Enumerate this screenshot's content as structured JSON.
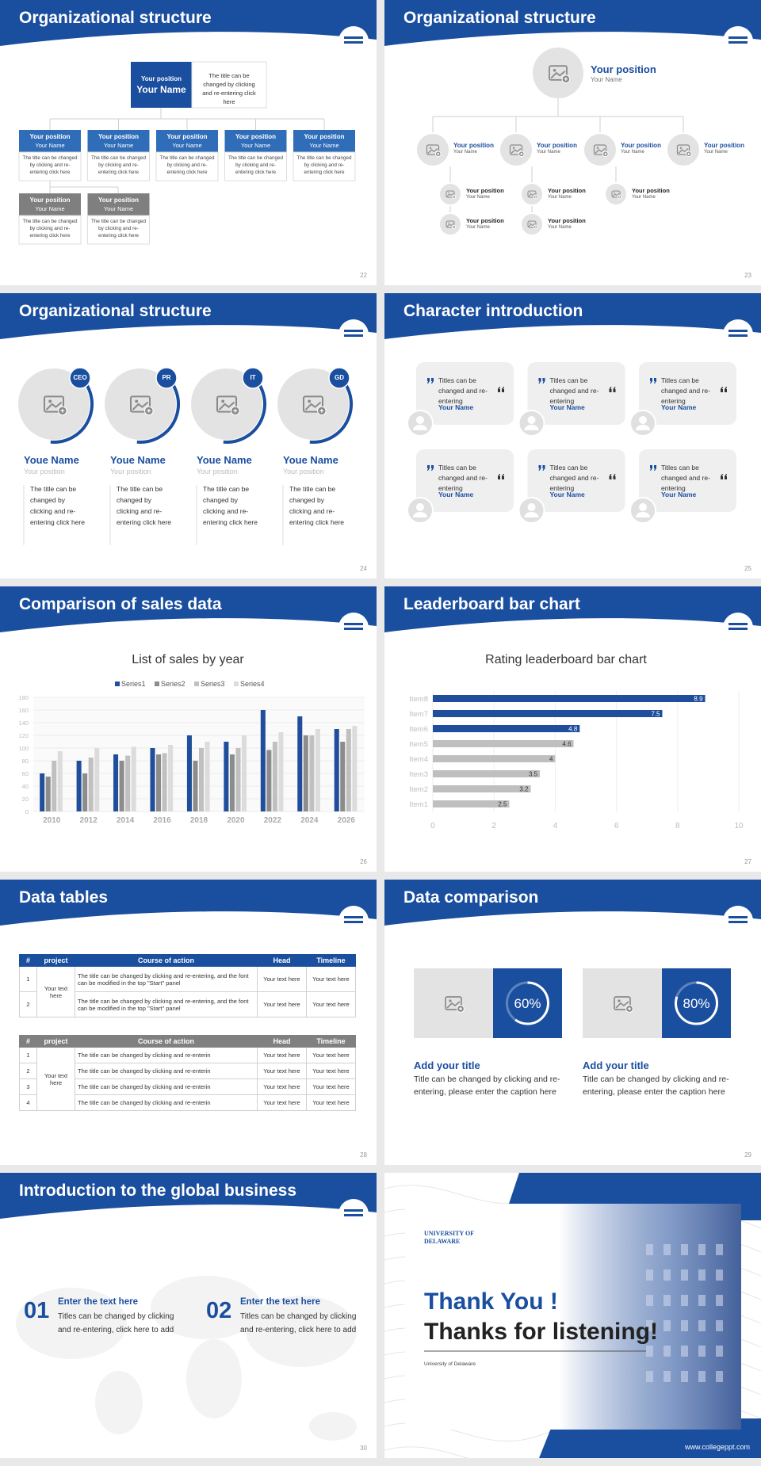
{
  "slides": [
    {
      "title": "Organizational structure",
      "page": "22",
      "top": {
        "position": "Your position",
        "name": "Your Name",
        "desc": "The title can be changed by clicking and re-entering click here"
      },
      "boxes": [
        {
          "position": "Your position",
          "name": "Your Name",
          "desc": "The title can be changed by clicking and re-entering click here"
        },
        {
          "position": "Your position",
          "name": "Your Name",
          "desc": "The title can be changed by clicking and re-entering click here"
        },
        {
          "position": "Your position",
          "name": "Your Name",
          "desc": "The title can be changed by clicking and re-entering click here"
        },
        {
          "position": "Your position",
          "name": "Your Name",
          "desc": "The title can be changed by clicking and re-entering click here"
        },
        {
          "position": "Your position",
          "name": "Your Name",
          "desc": "The title can be changed by clicking and re-entering click here"
        }
      ],
      "gray_boxes": [
        {
          "position": "Your position",
          "name": "Your Name",
          "desc": "The title can be changed by clicking and re-entering click here"
        },
        {
          "position": "Your position",
          "name": "Your Name",
          "desc": "The title can be changed by clicking and re-entering click here"
        }
      ]
    },
    {
      "title": "Organizational structure",
      "page": "23",
      "top": {
        "position": "Your position",
        "name": "Your Name"
      },
      "mid": [
        {
          "position": "Your position",
          "name": "Your Name"
        },
        {
          "position": "Your position",
          "name": "Your Name"
        },
        {
          "position": "Your position",
          "name": "Your Name"
        },
        {
          "position": "Your position",
          "name": "Your Name"
        }
      ],
      "small": [
        {
          "position": "Your position",
          "name": "Your Name"
        },
        {
          "position": "Your position",
          "name": "Your Name"
        },
        {
          "position": "Your position",
          "name": "Your Name"
        },
        {
          "position": "Your position",
          "name": "Your Name"
        },
        {
          "position": "Your position",
          "name": "Your Name"
        }
      ]
    },
    {
      "title": "Organizational structure",
      "page": "24",
      "cards": [
        {
          "badge": "CEO",
          "name": "Youe Name",
          "position": "Your position",
          "desc": "The title can be changed by clicking and re-entering click here"
        },
        {
          "badge": "PR",
          "name": "Youe Name",
          "position": "Your position",
          "desc": "The title can be changed by clicking and re-entering click here"
        },
        {
          "badge": "IT",
          "name": "Youe Name",
          "position": "Your position",
          "desc": "The title can be changed by clicking and re-entering click here"
        },
        {
          "badge": "GD",
          "name": "Youe Name",
          "position": "Your position",
          "desc": "The title can be changed by clicking and re-entering click here"
        }
      ]
    },
    {
      "title": "Character introduction",
      "page": "25",
      "cards": [
        {
          "quote": "Titles can be changed and re-entering",
          "name": "Your Name"
        },
        {
          "quote": "Titles can be changed and re-entering",
          "name": "Your Name"
        },
        {
          "quote": "Titles can be changed and re-entering",
          "name": "Your Name"
        },
        {
          "quote": "Titles can be changed and re-entering",
          "name": "Your Name"
        },
        {
          "quote": "Titles can be changed and re-entering",
          "name": "Your Name"
        },
        {
          "quote": "Titles can be changed and re-entering",
          "name": "Your Name"
        }
      ]
    },
    {
      "title": "Comparison of sales data",
      "page": "26",
      "chart": {
        "type": "bar",
        "title": "List of sales by year",
        "categories": [
          "2010",
          "2012",
          "2014",
          "2016",
          "2018",
          "2020",
          "2022",
          "2024",
          "2026"
        ],
        "series": [
          {
            "name": "Series1",
            "color": "#1f4e9c",
            "values": [
              60,
              80,
              90,
              100,
              120,
              110,
              160,
              150,
              130
            ]
          },
          {
            "name": "Series2",
            "color": "#8c8c8c",
            "values": [
              55,
              60,
              80,
              90,
              80,
              90,
              97,
              120,
              110
            ]
          },
          {
            "name": "Series3",
            "color": "#c0c0c0",
            "values": [
              80,
              85,
              88,
              92,
              100,
              100,
              110,
              120,
              130
            ]
          },
          {
            "name": "Series4",
            "color": "#dcdcdc",
            "values": [
              95,
              100,
              102,
              105,
              110,
              120,
              125,
              130,
              135
            ]
          }
        ],
        "ylim": [
          0,
          180
        ],
        "yticks": [
          0,
          20,
          40,
          60,
          80,
          100,
          120,
          140,
          160,
          180
        ],
        "grid": true
      }
    },
    {
      "title": "Leaderboard bar chart",
      "page": "27",
      "chart": {
        "type": "hbar",
        "title": "Rating leaderboard bar chart",
        "categories": [
          "Item1",
          "Item2",
          "Item3",
          "Item4",
          "Item5",
          "Item6",
          "Item7",
          "Item8"
        ],
        "values": [
          2.5,
          3.2,
          3.5,
          4,
          4.6,
          4.8,
          7.5,
          8.9
        ],
        "colors": [
          "#bfbfbf",
          "#bfbfbf",
          "#bfbfbf",
          "#bfbfbf",
          "#bfbfbf",
          "#1f4e9c",
          "#1f4e9c",
          "#1f4e9c"
        ],
        "xlim": [
          0,
          10
        ],
        "xticks": [
          0,
          2,
          4,
          6,
          8,
          10
        ],
        "grid": true
      }
    },
    {
      "title": "Data tables",
      "page": "28",
      "tables": [
        {
          "header": [
            "#",
            "project",
            "Course of action",
            "Head",
            "Timeline"
          ],
          "project": "Your text here",
          "rows": [
            {
              "num": "1",
              "course": "The title can be changed by clicking and re-entering, and the font can be modified in the top \"Start\" panel",
              "head": "Your text here",
              "timeline": "Your text here"
            },
            {
              "num": "2",
              "course": "The title can be changed by clicking and re-entering, and the font can be modified in the top \"Start\" panel",
              "head": "Your text here",
              "timeline": "Your text here"
            }
          ]
        },
        {
          "header": [
            "#",
            "project",
            "Course of action",
            "Head",
            "Timeline"
          ],
          "project": "Your text here",
          "rows": [
            {
              "num": "1",
              "course": "The title can be changed by clicking and re-enterin",
              "head": "Your text here",
              "timeline": "Your text here"
            },
            {
              "num": "2",
              "course": "The title can be changed by clicking and re-enterin",
              "head": "Your text here",
              "timeline": "Your text here"
            },
            {
              "num": "3",
              "course": "The title can be changed by clicking and re-enterin",
              "head": "Your text here",
              "timeline": "Your text here"
            },
            {
              "num": "4",
              "course": "The title can be changed by clicking and re-enterin",
              "head": "Your text here",
              "timeline": "Your text here"
            }
          ]
        }
      ]
    },
    {
      "title": "Data comparison",
      "page": "29",
      "items": [
        {
          "value": 60,
          "label": "60%",
          "heading": "Add your title",
          "desc": "Title can be changed by clicking and re-entering, please enter the caption here"
        },
        {
          "value": 80,
          "label": "80%",
          "heading": "Add your title",
          "desc": "Title can be changed by clicking and re-entering, please enter the caption here"
        }
      ]
    },
    {
      "title": "Introduction to the global business",
      "page": "30",
      "items": [
        {
          "number": "01",
          "heading": "Enter the text here",
          "desc": "Titles can be changed by clicking and re-entering, click here to add"
        },
        {
          "number": "02",
          "heading": "Enter the text here",
          "desc": "Titles can be changed by clicking and re-entering, click here to add"
        }
      ]
    },
    {
      "logo": "UNIVERSITY OF DELAWARE",
      "line1": "Thank You !",
      "line2": "Thanks for listening!",
      "caption": "University of Delaware",
      "url": "www.collegeppt.com"
    }
  ]
}
